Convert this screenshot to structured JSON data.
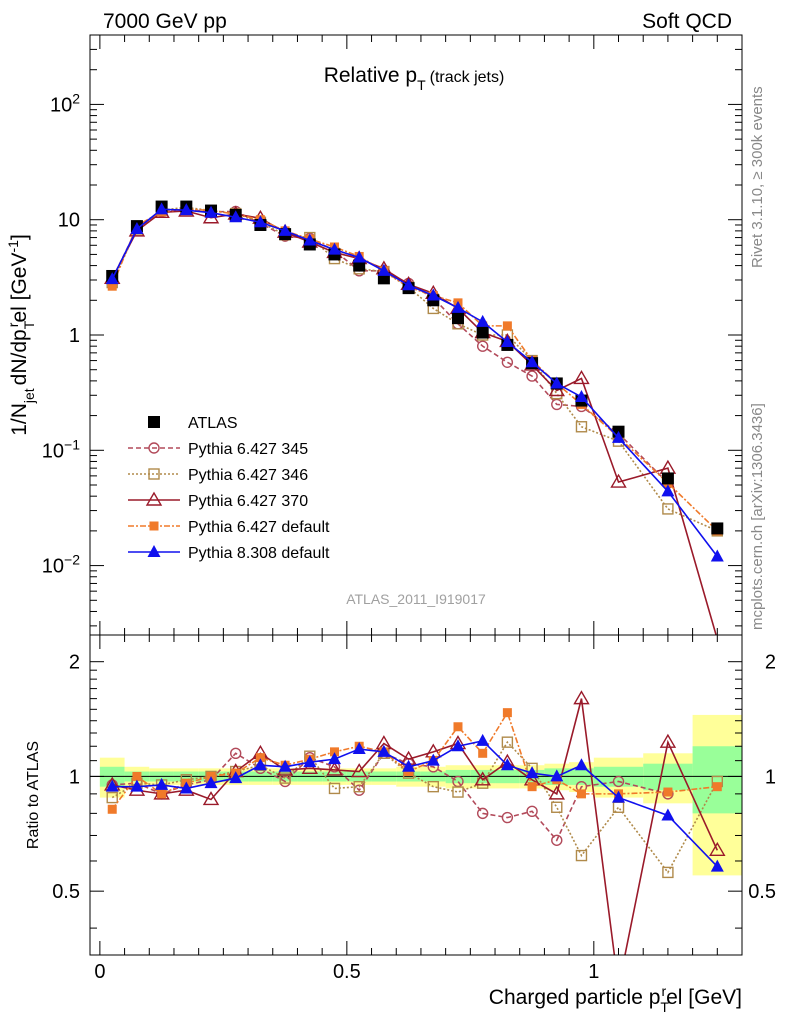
{
  "header": {
    "left_label": "7000 GeV pp",
    "right_label": "Soft QCD"
  },
  "side_labels": {
    "rivet": "Rivet 3.1.10, ≥ 300k events",
    "mcplots": "mcplots.cern.ch [arXiv:1306.3436]"
  },
  "chart_data": [
    {
      "type": "line",
      "title": "Relative p_T (track jets)",
      "ylabel": "1/N_jet dN/dp_T^rel [GeV^-1]",
      "xlabel": "",
      "yscale": "log",
      "xlim": [
        -0.02,
        1.3
      ],
      "ylim": [
        0.0025,
        400
      ],
      "yticks": [
        "10^-2",
        "10^-1",
        "1",
        "10",
        "10^2"
      ],
      "analysis_label": "ATLAS_2011_I919017",
      "legend_placement": "lower-left",
      "x": [
        0.025,
        0.075,
        0.125,
        0.175,
        0.225,
        0.275,
        0.325,
        0.375,
        0.425,
        0.475,
        0.525,
        0.575,
        0.625,
        0.675,
        0.725,
        0.775,
        0.825,
        0.875,
        0.925,
        0.975,
        1.05,
        1.15,
        1.25
      ],
      "series": [
        {
          "name": "ATLAS",
          "color": "#000000",
          "marker": "square-filled",
          "dash": "none",
          "values": [
            3.25,
            8.8,
            13.0,
            13.0,
            12.0,
            11.0,
            9.0,
            7.5,
            6.1,
            5.0,
            4.0,
            3.1,
            2.55,
            2.0,
            1.4,
            1.05,
            0.82,
            0.57,
            0.38,
            0.27,
            0.145,
            0.057,
            0.021
          ]
        },
        {
          "name": "Pythia 6.427 345",
          "color": "#b24a5a",
          "marker": "circle-open",
          "dash": "5,3",
          "values": [
            3.05,
            8.4,
            11.8,
            12.3,
            11.7,
            11.8,
            9.3,
            7.2,
            6.9,
            5.4,
            3.6,
            3.6,
            2.8,
            2.1,
            1.25,
            0.8,
            0.58,
            0.44,
            0.25,
            0.24,
            0.14,
            0.052,
            null
          ]
        },
        {
          "name": "Pythia 6.427 346",
          "color": "#b08a4a",
          "marker": "square-open",
          "dash": "2,2",
          "values": [
            2.85,
            8.3,
            12.1,
            12.8,
            12.0,
            11.3,
            9.5,
            7.4,
            7.0,
            4.6,
            3.75,
            3.55,
            2.6,
            1.7,
            1.25,
            1.0,
            1.0,
            0.6,
            0.31,
            0.16,
            0.12,
            0.031,
            0.02
          ]
        },
        {
          "name": "Pythia 6.427 370",
          "color": "#9a1a2a",
          "marker": "triangle-open",
          "dash": "none",
          "values": [
            3.1,
            8.0,
            11.6,
            11.9,
            10.4,
            11.2,
            10.3,
            7.8,
            6.4,
            5.2,
            4.6,
            3.75,
            2.75,
            2.3,
            1.7,
            1.05,
            0.88,
            0.55,
            0.33,
            0.42,
            0.053,
            0.07,
            0.0023
          ]
        },
        {
          "name": "Pythia 6.427 default",
          "color": "#f07a2a",
          "marker": "square-filled-small",
          "dash": "6,2,2,2",
          "values": [
            2.65,
            8.9,
            11.7,
            12.4,
            12.0,
            11.2,
            10.0,
            8.0,
            6.8,
            5.8,
            4.8,
            3.6,
            2.6,
            2.2,
            1.9,
            1.2,
            1.2,
            0.6,
            0.38,
            0.25,
            0.13,
            0.052,
            0.02
          ]
        },
        {
          "name": "Pythia 8.308 default",
          "color": "#1010ee",
          "marker": "triangle-filled",
          "dash": "none",
          "values": [
            3.05,
            8.3,
            12.3,
            12.1,
            11.5,
            10.5,
            9.5,
            8.0,
            6.6,
            5.5,
            4.7,
            3.6,
            2.7,
            2.2,
            1.72,
            1.3,
            0.87,
            0.58,
            0.38,
            0.29,
            0.128,
            0.044,
            0.012
          ]
        }
      ]
    },
    {
      "type": "line",
      "title": "",
      "xlabel": "Charged particle p_T^rel [GeV]",
      "ylabel": "Ratio to ATLAS",
      "xlim": [
        -0.02,
        1.3
      ],
      "ylim": [
        0.34,
        2.35
      ],
      "yticks": [
        "0.5",
        "1",
        "2"
      ],
      "xticks": [
        "0",
        "0.5",
        "1"
      ],
      "reference_line": 1,
      "band_colors": {
        "inner": "#99ff99",
        "outer": "#ffff99"
      },
      "bands": {
        "x_edges": [
          0.0,
          0.05,
          0.1,
          0.15,
          0.2,
          0.25,
          0.3,
          0.35,
          0.4,
          0.45,
          0.5,
          0.55,
          0.6,
          0.65,
          0.7,
          0.75,
          0.8,
          0.85,
          0.9,
          0.95,
          1.0,
          1.1,
          1.2,
          1.3
        ],
        "inner_halfwidth": [
          0.06,
          0.03,
          0.03,
          0.03,
          0.03,
          0.03,
          0.03,
          0.03,
          0.03,
          0.03,
          0.03,
          0.03,
          0.03,
          0.03,
          0.04,
          0.04,
          0.04,
          0.04,
          0.05,
          0.05,
          0.06,
          0.08,
          0.2
        ],
        "outer_halfwidth": [
          0.12,
          0.06,
          0.05,
          0.05,
          0.05,
          0.05,
          0.05,
          0.05,
          0.05,
          0.05,
          0.05,
          0.05,
          0.06,
          0.06,
          0.07,
          0.07,
          0.07,
          0.07,
          0.08,
          0.09,
          0.12,
          0.15,
          0.45
        ]
      },
      "x": [
        0.025,
        0.075,
        0.125,
        0.175,
        0.225,
        0.275,
        0.325,
        0.375,
        0.425,
        0.475,
        0.525,
        0.575,
        0.625,
        0.675,
        0.725,
        0.775,
        0.825,
        0.875,
        0.925,
        0.975,
        1.05,
        1.15,
        1.25
      ],
      "series": [
        {
          "name": "Pythia 6.427 345",
          "values": [
            0.95,
            0.96,
            0.9,
            0.95,
            0.98,
            1.15,
            1.05,
            0.97,
            1.12,
            1.06,
            0.92,
            1.15,
            1.08,
            1.06,
            0.97,
            0.8,
            0.78,
            0.81,
            0.68,
            0.94,
            0.97,
            0.9,
            null
          ]
        },
        {
          "name": "Pythia 6.427 346",
          "values": [
            0.88,
            0.96,
            0.95,
            0.98,
            1.0,
            1.03,
            1.07,
            0.99,
            1.13,
            0.93,
            0.94,
            1.15,
            1.02,
            0.94,
            0.91,
            0.96,
            1.23,
            1.05,
            0.83,
            0.62,
            0.83,
            0.56,
            0.97
          ]
        },
        {
          "name": "Pythia 6.427 370",
          "values": [
            0.95,
            0.92,
            0.9,
            0.92,
            0.87,
            1.03,
            1.15,
            1.04,
            1.05,
            1.04,
            1.03,
            1.22,
            1.11,
            1.16,
            1.22,
            0.98,
            1.09,
            0.98,
            0.9,
            1.6,
            0.28,
            1.23,
            0.64
          ]
        },
        {
          "name": "Pythia 6.427 default",
          "values": [
            0.82,
            1.0,
            0.9,
            0.96,
            1.0,
            1.02,
            1.12,
            1.07,
            1.11,
            1.16,
            1.2,
            1.16,
            1.03,
            1.1,
            1.35,
            1.15,
            1.47,
            0.94,
            0.98,
            0.9,
            0.9,
            0.91,
            0.94
          ]
        },
        {
          "name": "Pythia 8.308 default",
          "values": [
            0.94,
            0.94,
            0.95,
            0.93,
            0.96,
            0.99,
            1.07,
            1.06,
            1.09,
            1.11,
            1.18,
            1.16,
            1.06,
            1.1,
            1.2,
            1.24,
            1.07,
            1.02,
            1.0,
            1.07,
            0.88,
            0.79,
            0.58
          ]
        }
      ]
    }
  ]
}
